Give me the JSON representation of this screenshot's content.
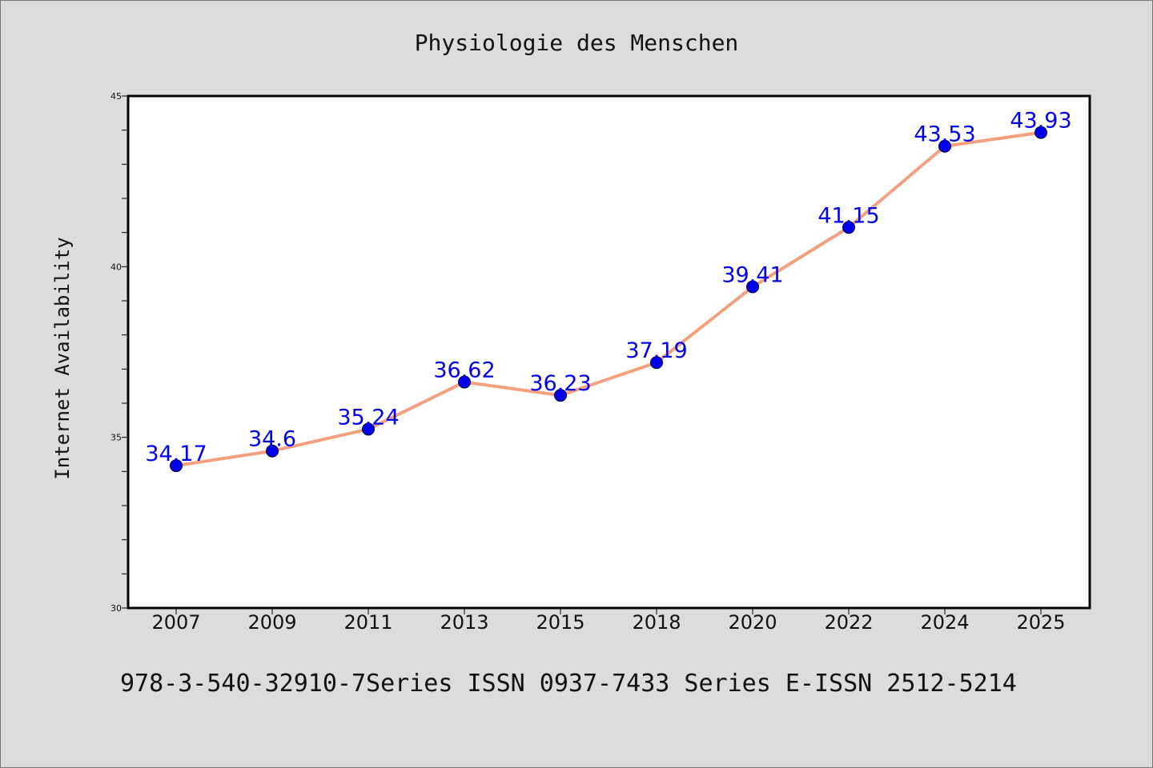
{
  "chart_data": {
    "type": "line",
    "title": "Physiologie des Menschen",
    "ylabel": "Internet Availability",
    "xlabel": "",
    "footer": "978-3-540-32910-7Series ISSN 0937-7433 Series E-ISSN 2512-5214",
    "categories": [
      "2007",
      "2009",
      "2011",
      "2013",
      "2015",
      "2018",
      "2020",
      "2022",
      "2024",
      "2025"
    ],
    "series": [
      {
        "values": [
          34.17,
          34.6,
          35.24,
          36.62,
          36.23,
          37.19,
          39.41,
          41.15,
          43.53,
          43.93
        ],
        "line_color": "#f4a07e",
        "marker_color": "#0000ee"
      }
    ],
    "data_labels": [
      "34.17",
      "34.6",
      "35.24",
      "36.62",
      "36.23",
      "37.19",
      "39.41",
      "41.15",
      "43.53",
      "43.93"
    ],
    "ylim": [
      30,
      45
    ],
    "yticks": [
      30,
      35,
      40,
      45
    ],
    "grid": false,
    "label_color": "#0000ee"
  }
}
